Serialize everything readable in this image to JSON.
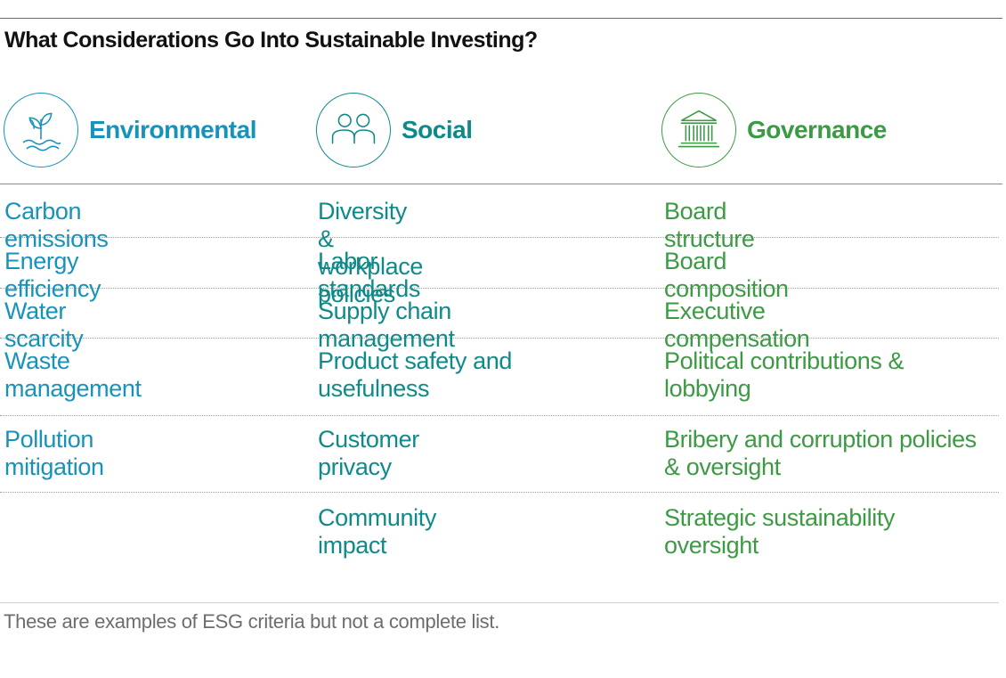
{
  "title": "What Considerations Go Into Sustainable Investing?",
  "colors": {
    "environmental": "#1793bb",
    "social": "#0f8a8a",
    "governance": "#3d9a44"
  },
  "columns": [
    {
      "label": "Environmental",
      "icon": "plant-water-icon",
      "items": [
        "Carbon emissions",
        "Energy efficiency",
        "Water scarcity",
        "Waste management",
        "Pollution mitigation",
        ""
      ]
    },
    {
      "label": "Social",
      "icon": "people-icon",
      "items": [
        "Diversity & workplace policies",
        "Labor standards",
        "Supply chain management",
        "Product safety and usefulness",
        "Customer privacy",
        "Community impact"
      ]
    },
    {
      "label": "Governance",
      "icon": "institution-building-icon",
      "items": [
        "Board structure",
        "Board composition",
        "Executive compensation",
        "Political contributions & lobbying",
        "Bribery and corruption policies & oversight",
        "Strategic sustainability oversight"
      ]
    }
  ],
  "footnote": "These are examples of ESG criteria but not a complete list."
}
